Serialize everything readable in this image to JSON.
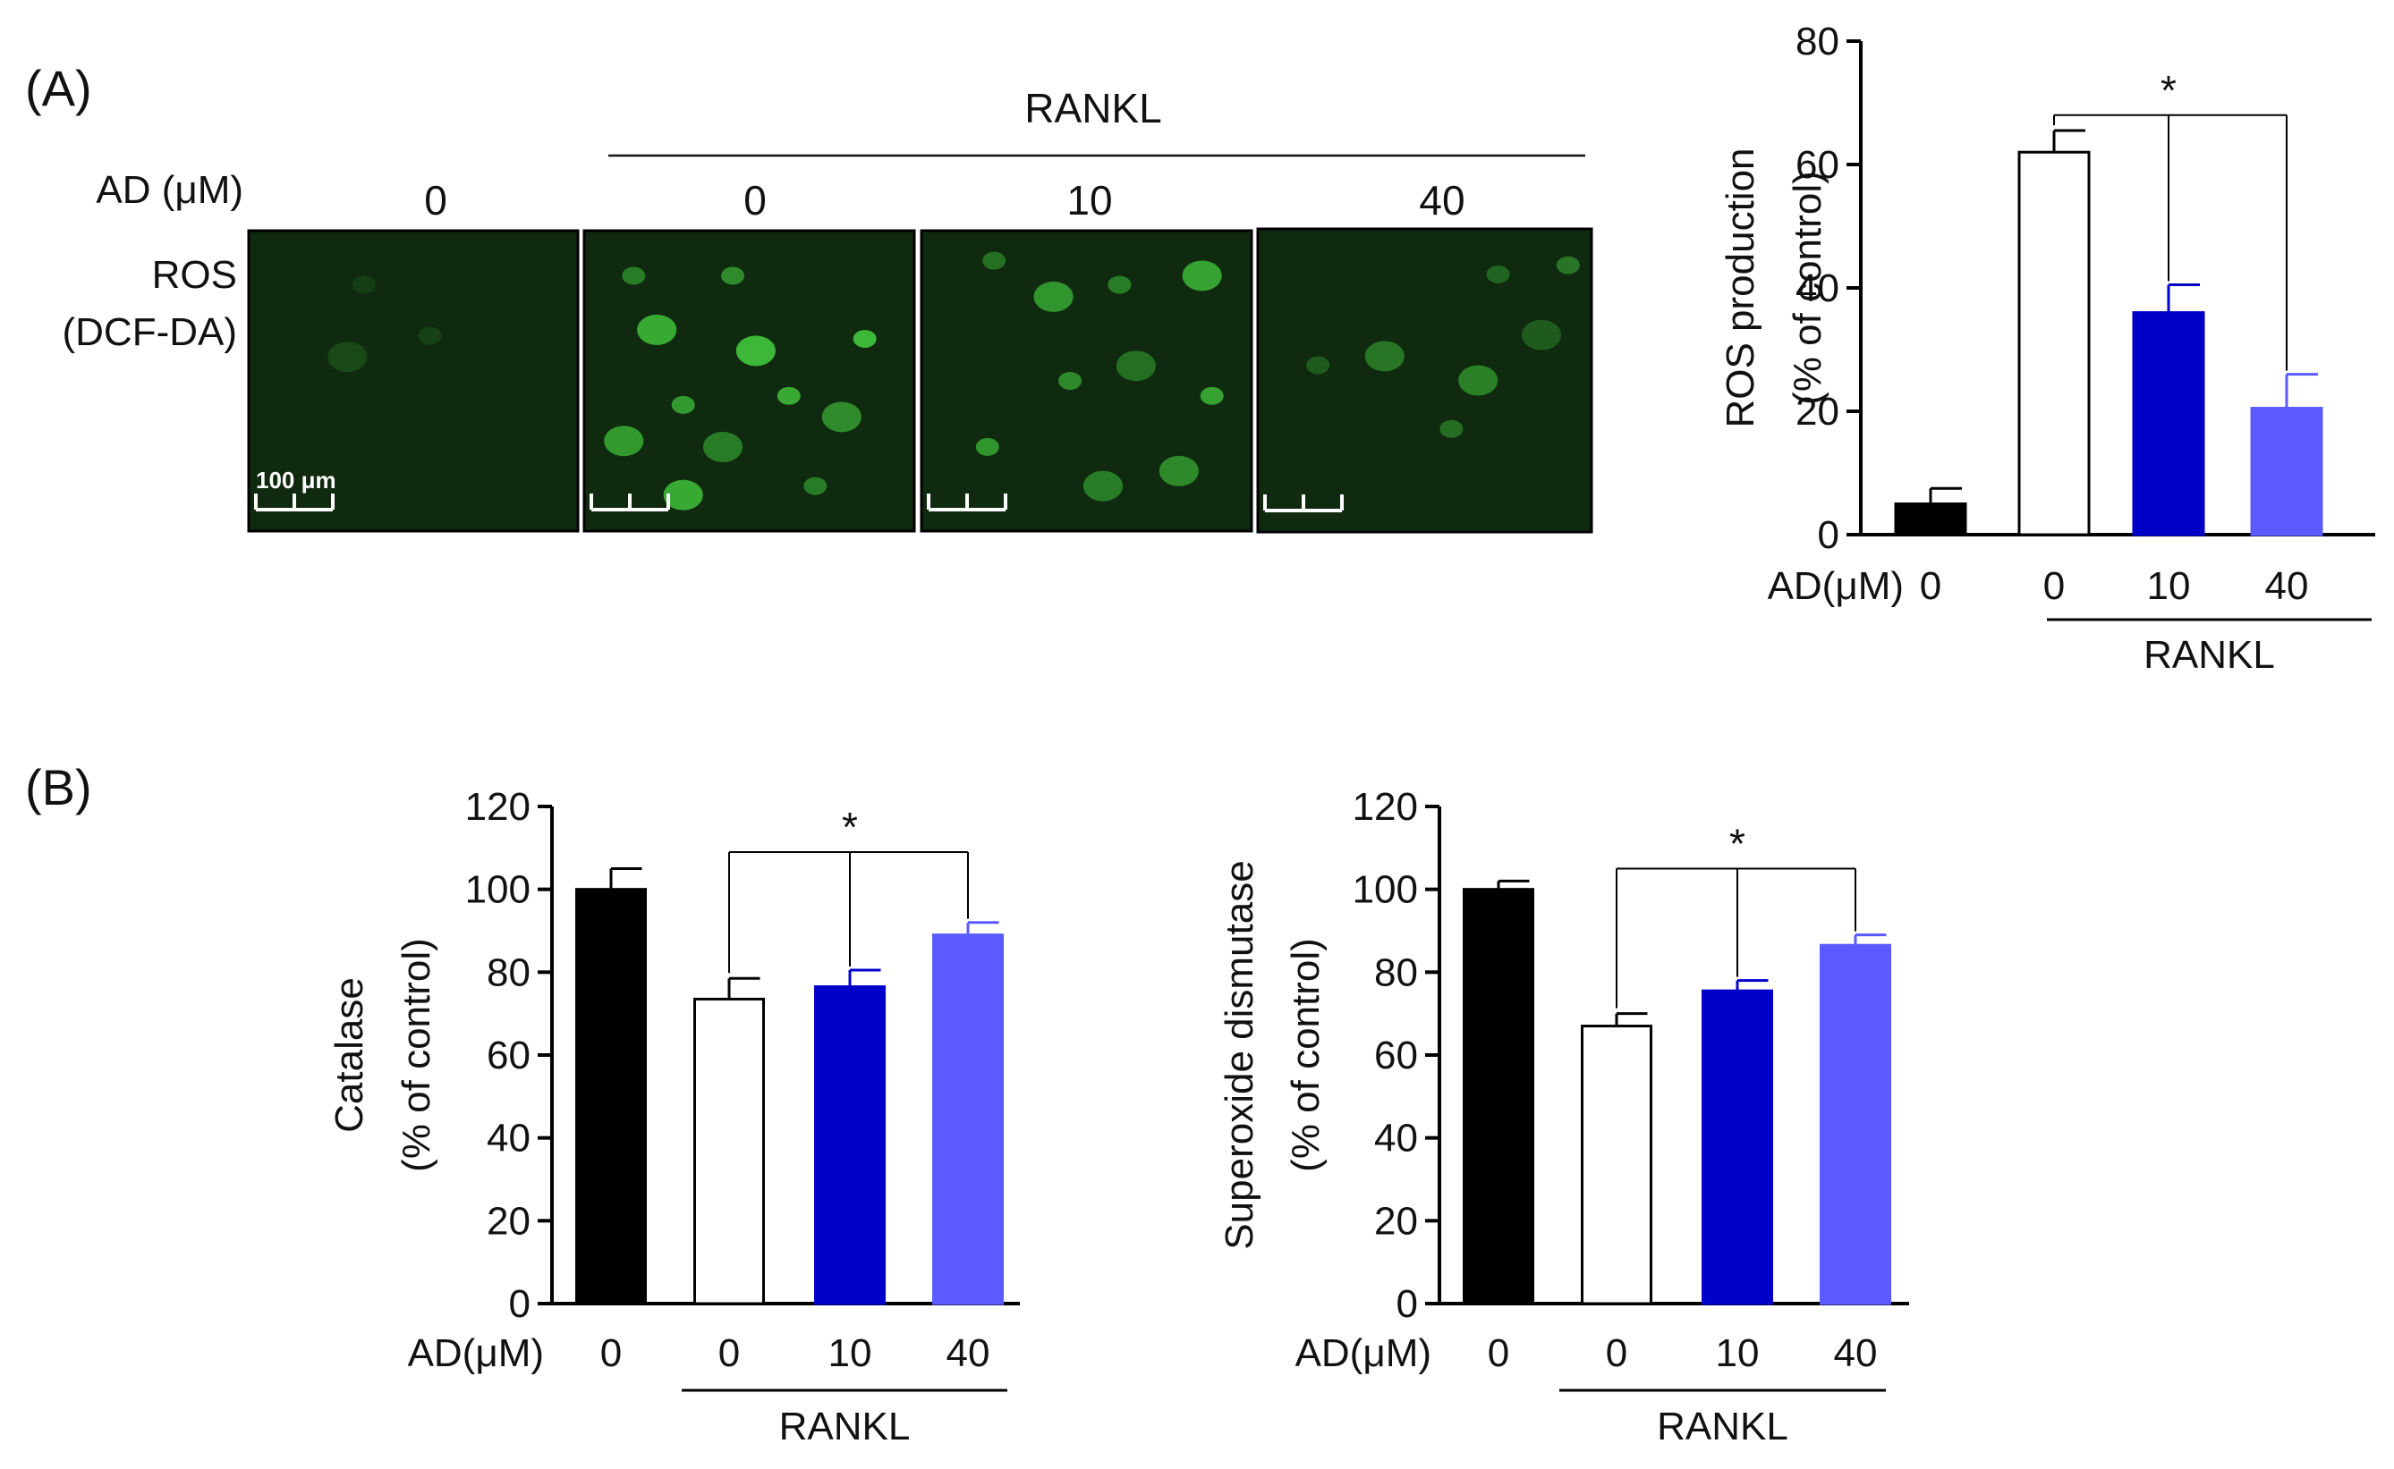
{
  "panel_a": {
    "label": "(A)",
    "micrographs": {
      "header": "RANKL",
      "row_label": "AD (μM)",
      "image_label_line1": "ROS",
      "image_label_line2": "(DCF-DA)",
      "scale_label": "100 μm",
      "columns": [
        "0",
        "0",
        "10",
        "40"
      ],
      "tint_color": "#0f2a0f",
      "stain_color": "#3fbf3a"
    }
  },
  "panel_b": {
    "label": "(B)"
  },
  "colors": {
    "black": "#000000",
    "white": "#ffffff",
    "dark_blue": "#0000c8",
    "light_blue": "#5a5aff"
  },
  "chart_data": [
    {
      "id": "ros",
      "type": "bar",
      "ylabel": [
        "ROS production",
        "(% of control)"
      ],
      "ylim": [
        0,
        80
      ],
      "yticks": [
        0,
        20,
        40,
        60,
        80
      ],
      "xaxis_label": "AD(μM)",
      "categories": [
        "0",
        "0",
        "10",
        "40"
      ],
      "group_label": "RANKL",
      "values": [
        5,
        62,
        36,
        20.5
      ],
      "errors": [
        2.5,
        3.5,
        4.5,
        5.5
      ],
      "colors": [
        "#000000",
        "#ffffff",
        "#0000c8",
        "#5a5aff"
      ],
      "significance": {
        "symbol": "*",
        "level": 68,
        "from": 1,
        "to": [
          2,
          3
        ]
      }
    },
    {
      "id": "catalase",
      "type": "bar",
      "ylabel": [
        "Catalase",
        "(% of control)"
      ],
      "ylim": [
        0,
        120
      ],
      "yticks": [
        0,
        20,
        40,
        60,
        80,
        100,
        120
      ],
      "xaxis_label": "AD(μM)",
      "categories": [
        "0",
        "0",
        "10",
        "40"
      ],
      "group_label": "RANKL",
      "values": [
        100,
        73.5,
        76.5,
        89
      ],
      "errors": [
        5,
        5,
        4,
        3
      ],
      "colors": [
        "#000000",
        "#ffffff",
        "#0000c8",
        "#5a5aff"
      ],
      "significance": {
        "symbol": "*",
        "level": 109,
        "from": 1,
        "to": [
          2,
          3
        ]
      }
    },
    {
      "id": "sod",
      "type": "bar",
      "ylabel": [
        "Superoxide dismutase",
        "(% of control)"
      ],
      "ylim": [
        0,
        120
      ],
      "yticks": [
        0,
        20,
        40,
        60,
        80,
        100,
        120
      ],
      "xaxis_label": "AD(μM)",
      "categories": [
        "0",
        "0",
        "10",
        "40"
      ],
      "group_label": "RANKL",
      "values": [
        100,
        67,
        75.5,
        86.5
      ],
      "errors": [
        2,
        3,
        2.5,
        2.5
      ],
      "colors": [
        "#000000",
        "#ffffff",
        "#0000c8",
        "#5a5aff"
      ],
      "significance": {
        "symbol": "*",
        "level": 105,
        "from": 1,
        "to": [
          2,
          3
        ]
      }
    }
  ]
}
